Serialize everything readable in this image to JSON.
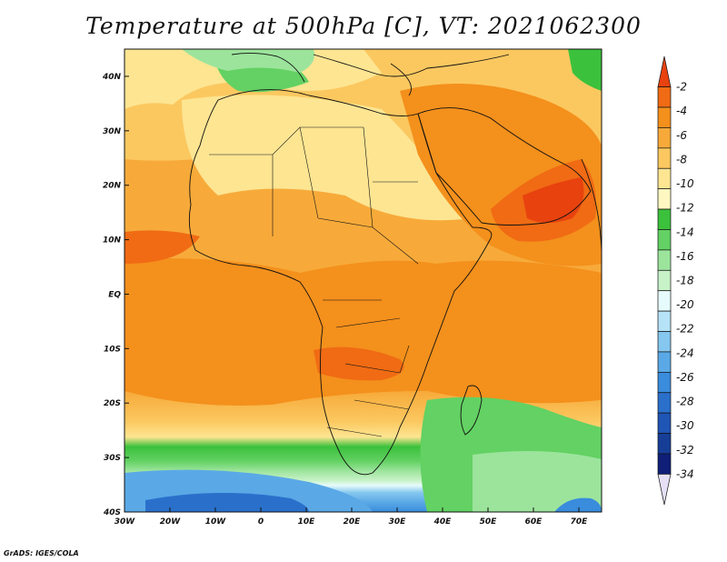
{
  "title": "Temperature at 500hPa [C], VT: 2021062300",
  "credit": "GrADS: IGES/COLA",
  "map": {
    "lon_range": [
      -30,
      75
    ],
    "lat_range": [
      -40,
      45
    ],
    "lon_ticks": [
      {
        "value": -30,
        "label": "30W"
      },
      {
        "value": -20,
        "label": "20W"
      },
      {
        "value": -10,
        "label": "10W"
      },
      {
        "value": 0,
        "label": "0"
      },
      {
        "value": 10,
        "label": "10E"
      },
      {
        "value": 20,
        "label": "20E"
      },
      {
        "value": 30,
        "label": "30E"
      },
      {
        "value": 40,
        "label": "40E"
      },
      {
        "value": 50,
        "label": "50E"
      },
      {
        "value": 60,
        "label": "60E"
      },
      {
        "value": 70,
        "label": "70E"
      }
    ],
    "lat_ticks": [
      {
        "value": 40,
        "label": "40N"
      },
      {
        "value": 30,
        "label": "30N"
      },
      {
        "value": 20,
        "label": "20N"
      },
      {
        "value": 10,
        "label": "10N"
      },
      {
        "value": 0,
        "label": "EQ"
      },
      {
        "value": -10,
        "label": "10S"
      },
      {
        "value": -20,
        "label": "20S"
      },
      {
        "value": -30,
        "label": "30S"
      },
      {
        "value": -40,
        "label": "40S"
      }
    ]
  },
  "colorbar": {
    "labels": [
      "-2",
      "-4",
      "-6",
      "-8",
      "-10",
      "-12",
      "-14",
      "-16",
      "-18",
      "-20",
      "-22",
      "-24",
      "-26",
      "-28",
      "-30",
      "-32",
      "-34"
    ],
    "colors": [
      "#e8420f",
      "#f06b14",
      "#f4901c",
      "#f7aa3a",
      "#fbc860",
      "#fde592",
      "#fff7c2",
      "#3cc13c",
      "#63d163",
      "#9ce49c",
      "#c8f2c8",
      "#e6fbfb",
      "#b7e3f8",
      "#85c7ef",
      "#5aa9e6",
      "#3a8cdc",
      "#2a70cb",
      "#1f55b5",
      "#173e97",
      "#0f1f78",
      "#e6e0f7"
    ]
  }
}
